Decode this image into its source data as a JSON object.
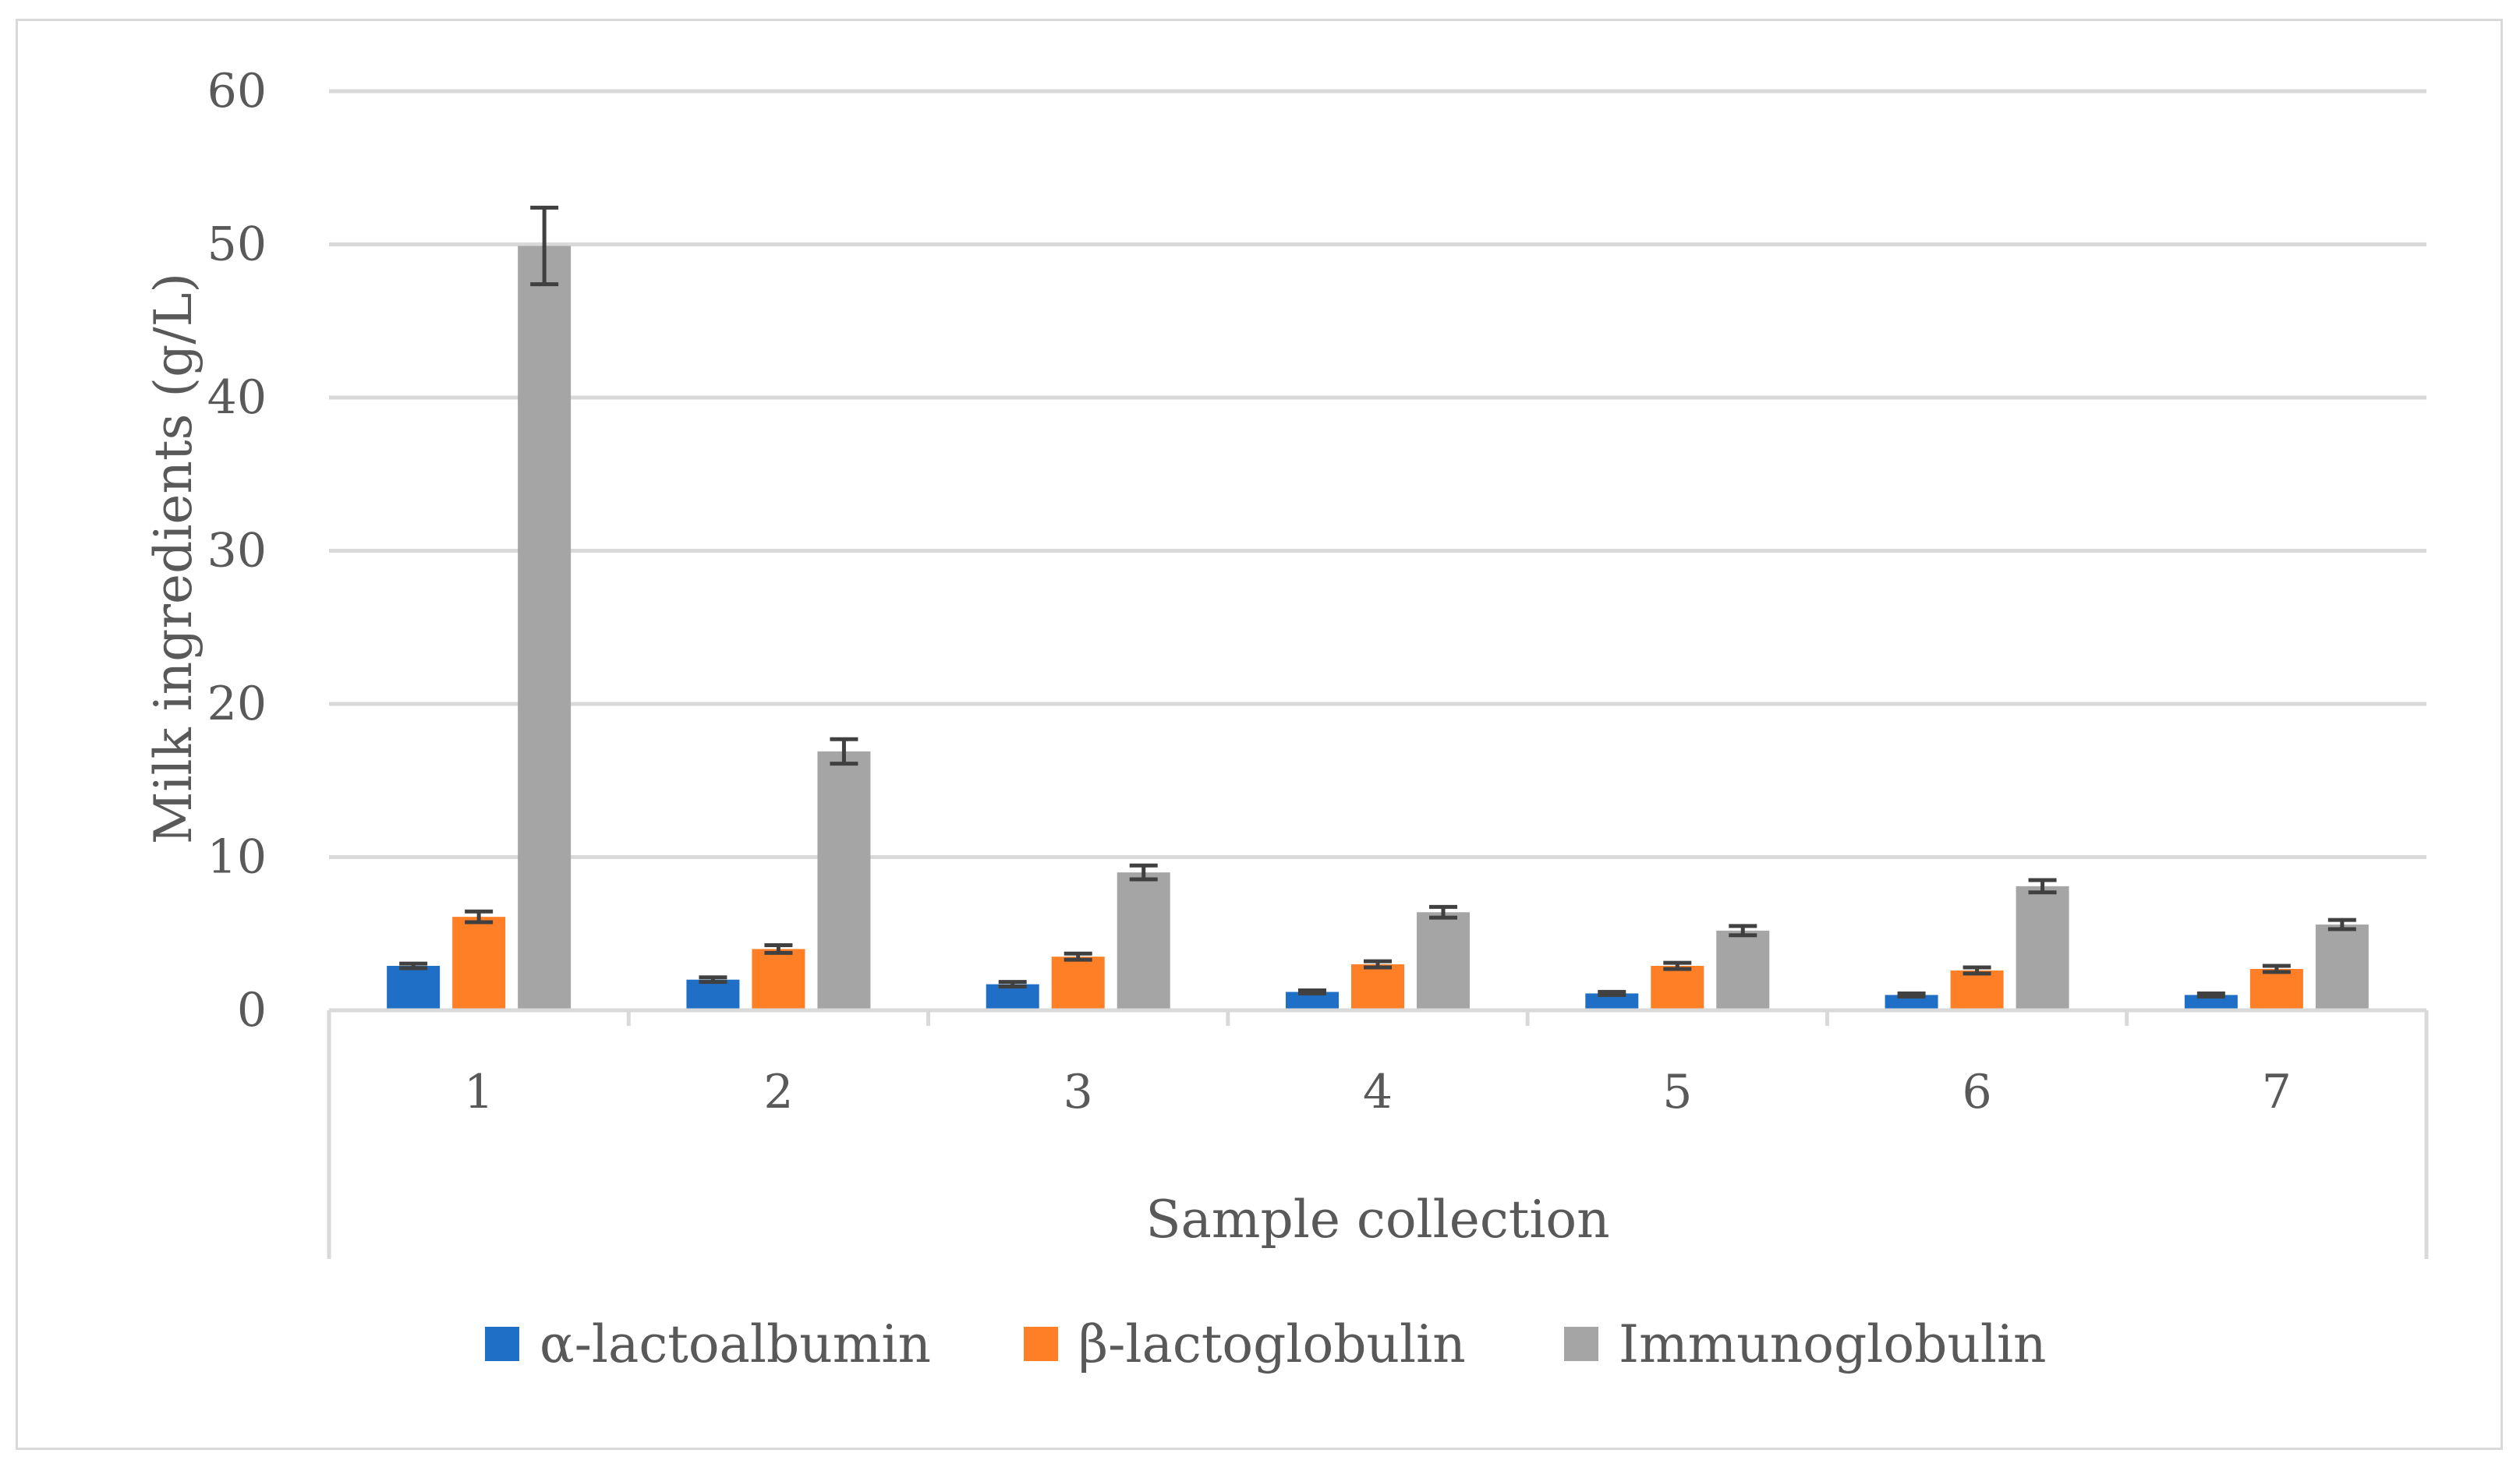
{
  "chart_data": {
    "type": "bar",
    "xlabel": "Sample collection",
    "ylabel": "Milk ingredients  (g/L)",
    "ylim": [
      0,
      60
    ],
    "yticks": [
      0,
      10,
      20,
      30,
      40,
      50,
      60
    ],
    "grid": true,
    "legend": "bottom",
    "categories": [
      "1",
      "2",
      "3",
      "4",
      "5",
      "6",
      "7"
    ],
    "series": [
      {
        "name": "α-lactoalbumin",
        "color": "#1f6fc6",
        "values": [
          2.9,
          2.0,
          1.7,
          1.2,
          1.1,
          1.0,
          1.0
        ],
        "errors": [
          0.15,
          0.15,
          0.15,
          0.1,
          0.1,
          0.1,
          0.1
        ]
      },
      {
        "name": "β-lactoglobulin",
        "color": "#ff7f27",
        "values": [
          6.1,
          4.0,
          3.5,
          3.0,
          2.9,
          2.6,
          2.7
        ],
        "errors": [
          0.35,
          0.25,
          0.2,
          0.2,
          0.2,
          0.2,
          0.2
        ]
      },
      {
        "name": "Immunoglobulin",
        "color": "#a5a5a5",
        "values": [
          49.9,
          16.9,
          9.0,
          6.4,
          5.2,
          8.1,
          5.6
        ],
        "errors": [
          2.5,
          0.8,
          0.45,
          0.35,
          0.3,
          0.4,
          0.3
        ]
      }
    ],
    "error_bar_color": "#404040"
  }
}
